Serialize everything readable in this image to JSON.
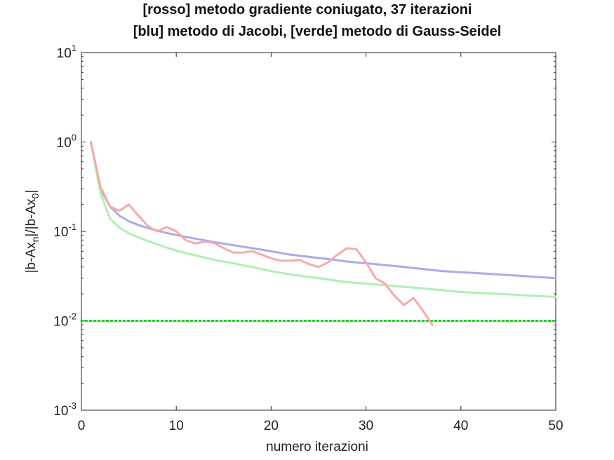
{
  "chart_data": {
    "type": "line",
    "title": [
      "[rosso] metodo gradiente coniugato, 37 iterazioni",
      "[blu] metodo di Jacobi, [verde] metodo di Gauss-Seidel"
    ],
    "xlabel": "numero iterazioni",
    "ylabel": {
      "base": "|b-Ax",
      "sub1": "n",
      "mid": "|/|b-Ax",
      "sub2": "0",
      "end": "|"
    },
    "xlim": [
      0,
      50
    ],
    "ylim": [
      0.001,
      10
    ],
    "yscale": "log",
    "grid": false,
    "xticks": [
      0,
      10,
      20,
      30,
      40,
      50
    ],
    "xtick_labels": [
      "0",
      "10",
      "20",
      "30",
      "40",
      "50"
    ],
    "yticks": [
      0.001,
      0.01,
      0.1,
      1,
      10
    ],
    "ytick_labels": [
      {
        "base": "10",
        "exp": "-3"
      },
      {
        "base": "10",
        "exp": "-2"
      },
      {
        "base": "10",
        "exp": "-1"
      },
      {
        "base": "10",
        "exp": "0"
      },
      {
        "base": "10",
        "exp": "1"
      }
    ],
    "series": [
      {
        "key": "jacobi",
        "color": "#aaaaf0",
        "x": [
          1,
          2,
          3,
          4,
          5,
          6,
          7,
          8,
          9,
          10,
          12,
          14,
          16,
          18,
          20,
          22,
          24,
          26,
          28,
          30,
          32,
          34,
          36,
          38,
          40,
          42,
          44,
          46,
          48,
          50
        ],
        "values": [
          1.0,
          0.3,
          0.19,
          0.15,
          0.13,
          0.118,
          0.109,
          0.102,
          0.096,
          0.091,
          0.083,
          0.076,
          0.07,
          0.065,
          0.06,
          0.055,
          0.052,
          0.049,
          0.046,
          0.044,
          0.042,
          0.04,
          0.038,
          0.036,
          0.035,
          0.034,
          0.033,
          0.032,
          0.031,
          0.03
        ]
      },
      {
        "key": "gauss-seidel",
        "color": "#b0f0b0",
        "x": [
          1,
          2,
          3,
          4,
          5,
          6,
          7,
          8,
          9,
          10,
          12,
          14,
          16,
          18,
          20,
          22,
          24,
          26,
          28,
          30,
          32,
          34,
          36,
          38,
          40,
          42,
          44,
          46,
          48,
          50
        ],
        "values": [
          1.0,
          0.27,
          0.14,
          0.11,
          0.095,
          0.086,
          0.078,
          0.072,
          0.066,
          0.061,
          0.054,
          0.048,
          0.044,
          0.04,
          0.036,
          0.033,
          0.031,
          0.029,
          0.027,
          0.026,
          0.025,
          0.024,
          0.023,
          0.022,
          0.021,
          0.0205,
          0.02,
          0.0195,
          0.019,
          0.0185
        ]
      },
      {
        "key": "gradiente-coniugato",
        "color": "#f5aaaa",
        "x": [
          1,
          2,
          3,
          4,
          5,
          6,
          7,
          8,
          9,
          10,
          11,
          12,
          13,
          14,
          15,
          16,
          17,
          18,
          19,
          20,
          21,
          22,
          23,
          24,
          25,
          26,
          27,
          28,
          29,
          30,
          31,
          32,
          33,
          34,
          35,
          36,
          37
        ],
        "values": [
          1.0,
          0.32,
          0.19,
          0.17,
          0.2,
          0.15,
          0.115,
          0.1,
          0.112,
          0.1,
          0.08,
          0.073,
          0.077,
          0.074,
          0.065,
          0.058,
          0.058,
          0.06,
          0.055,
          0.05,
          0.047,
          0.047,
          0.048,
          0.043,
          0.04,
          0.045,
          0.055,
          0.065,
          0.063,
          0.045,
          0.03,
          0.026,
          0.019,
          0.015,
          0.018,
          0.013,
          0.009
        ]
      }
    ],
    "threshold": {
      "key": "tolleranza",
      "value": 0.01,
      "color": "#22cc22",
      "style": "dotted"
    }
  }
}
